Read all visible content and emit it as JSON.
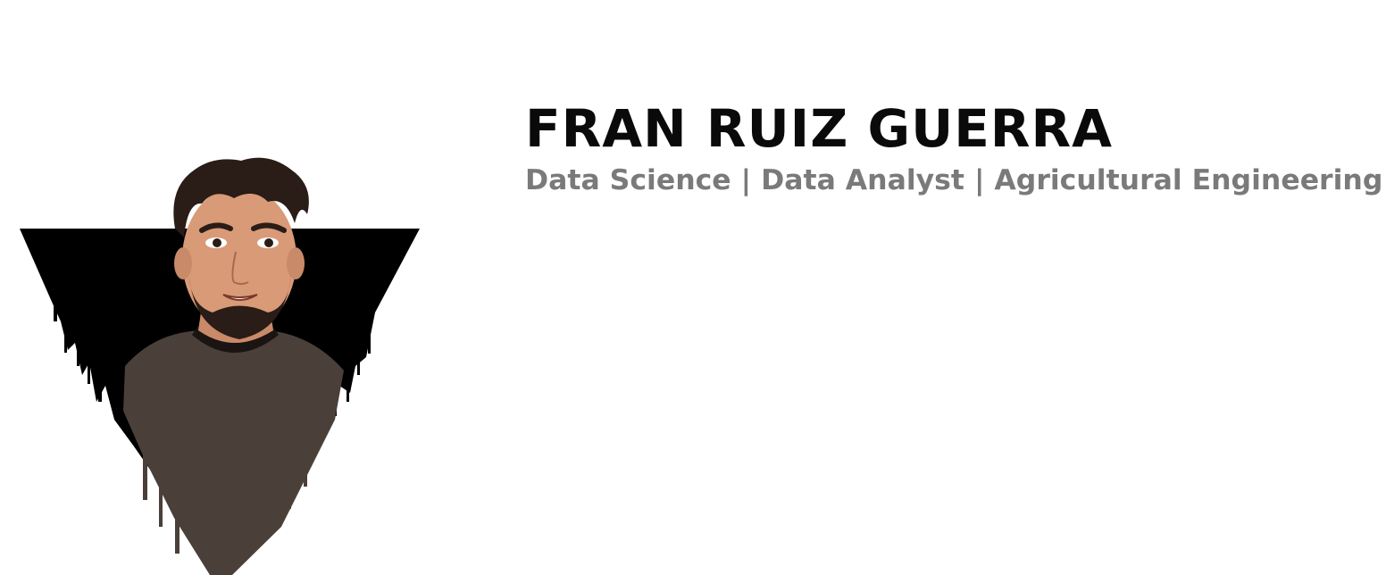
{
  "profile": {
    "name": "FRAN RUIZ GUERRA",
    "tagline": "Data Science | Data Analyst | Agricultural Engineering"
  },
  "portrait": {
    "icon": "cartoon-portrait-illustration",
    "background_color": "#000000",
    "skin_color": "#d99a78",
    "hair_color": "#2a1c16",
    "shirt_color": "#4a3f39"
  }
}
